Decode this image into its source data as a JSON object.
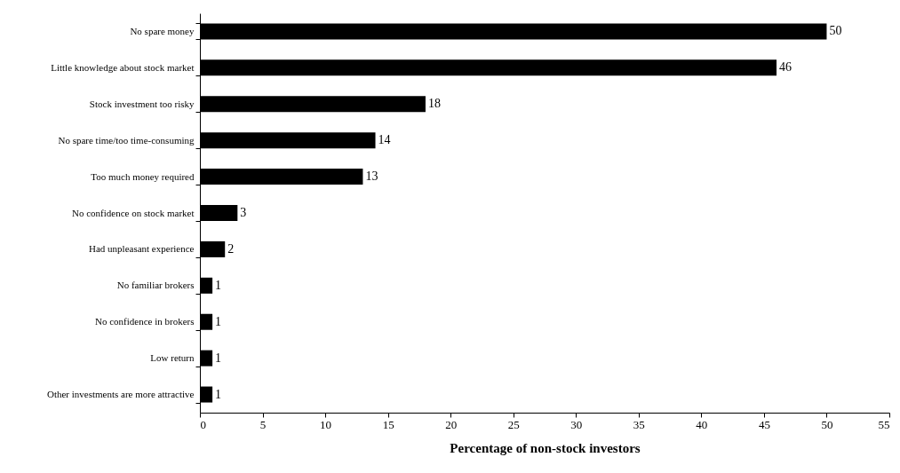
{
  "chart_data": {
    "type": "bar",
    "orientation": "horizontal",
    "xlabel": "Percentage of non-stock investors",
    "categories": [
      "No spare money",
      "Little knowledge about stock market",
      "Stock investment too risky",
      "No spare time/too time-consuming",
      "Too much money required",
      "No confidence on stock market",
      "Had unpleasant experience",
      "No familiar brokers",
      "No confidence in brokers",
      "Low return",
      "Other investments are more attractive"
    ],
    "values": [
      50,
      46,
      18,
      14,
      13,
      3,
      2,
      1,
      1,
      1,
      1
    ],
    "color": "#000000",
    "xlim": [
      0,
      55
    ],
    "xticks": [
      0,
      5,
      10,
      15,
      20,
      25,
      30,
      35,
      40,
      45,
      50,
      55
    ],
    "data_labels": true
  }
}
